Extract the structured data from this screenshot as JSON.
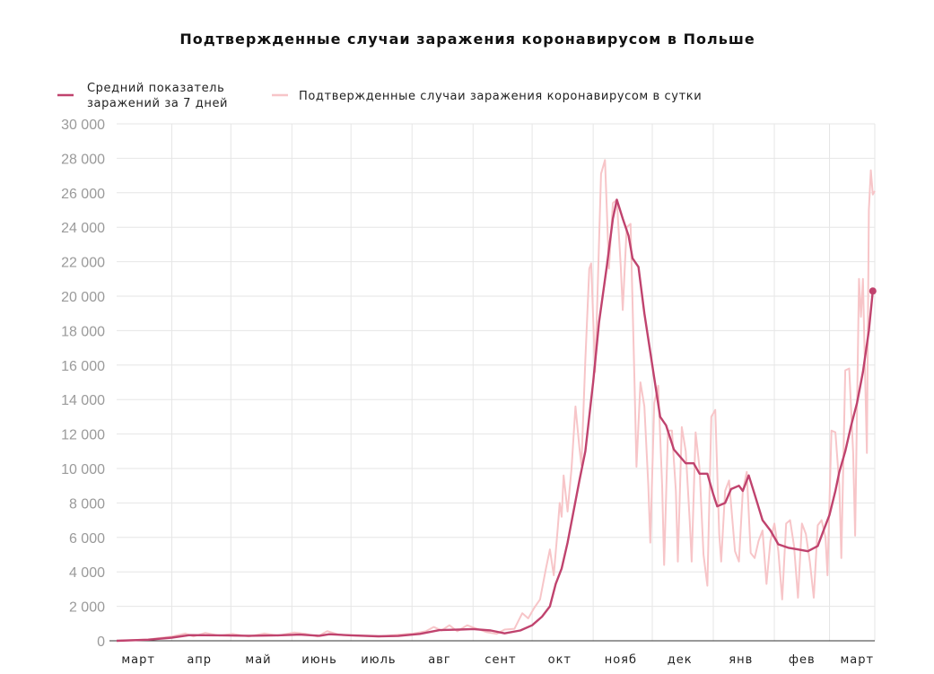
{
  "chart_data": {
    "type": "line",
    "title": "Подтвержденные случаи заражения коронавирусом в Польше",
    "xlabel": "",
    "ylabel": "",
    "ylim": [
      0,
      30000
    ],
    "yticks": [
      0,
      2000,
      4000,
      6000,
      8000,
      10000,
      12000,
      14000,
      16000,
      18000,
      20000,
      22000,
      24000,
      26000,
      28000,
      30000
    ],
    "ytick_labels": [
      "0",
      "2 000",
      "4 000",
      "6 000",
      "8 000",
      "10 000",
      "12 000",
      "14 000",
      "16 000",
      "18 000",
      "20 000",
      "22 000",
      "24 000",
      "26 000",
      "28 000",
      "30 000"
    ],
    "xlim": [
      "2020-03-04",
      "2021-03-24"
    ],
    "month_ticks": [
      {
        "date": "2020-03-15",
        "label": "март"
      },
      {
        "date": "2020-04-15",
        "label": "апр"
      },
      {
        "date": "2020-05-15",
        "label": "май"
      },
      {
        "date": "2020-06-15",
        "label": "июнь"
      },
      {
        "date": "2020-07-15",
        "label": "июль"
      },
      {
        "date": "2020-08-15",
        "label": "авг"
      },
      {
        "date": "2020-09-15",
        "label": "сент"
      },
      {
        "date": "2020-10-15",
        "label": "окт"
      },
      {
        "date": "2020-11-15",
        "label": "нояб"
      },
      {
        "date": "2020-12-15",
        "label": "дек"
      },
      {
        "date": "2021-01-15",
        "label": "янв"
      },
      {
        "date": "2021-02-15",
        "label": "фев"
      },
      {
        "date": "2021-03-15",
        "label": "март"
      }
    ],
    "grid": true,
    "legend_position": "top-left",
    "colors": {
      "avg": "#c0436e",
      "daily": "#f7c5c8",
      "grid": "#e6e6e6"
    },
    "series": [
      {
        "name": "Средний показатель заражений за 7 дней",
        "key": "avg",
        "points": [
          [
            "2020-03-04",
            0
          ],
          [
            "2020-03-20",
            60
          ],
          [
            "2020-04-01",
            180
          ],
          [
            "2020-04-10",
            330
          ],
          [
            "2020-04-25",
            320
          ],
          [
            "2020-05-10",
            290
          ],
          [
            "2020-05-25",
            320
          ],
          [
            "2020-06-05",
            360
          ],
          [
            "2020-06-15",
            290
          ],
          [
            "2020-06-20",
            380
          ],
          [
            "2020-07-01",
            320
          ],
          [
            "2020-07-15",
            260
          ],
          [
            "2020-07-25",
            280
          ],
          [
            "2020-08-05",
            400
          ],
          [
            "2020-08-15",
            620
          ],
          [
            "2020-08-25",
            650
          ],
          [
            "2020-09-01",
            680
          ],
          [
            "2020-09-10",
            600
          ],
          [
            "2020-09-17",
            430
          ],
          [
            "2020-09-25",
            600
          ],
          [
            "2020-10-01",
            900
          ],
          [
            "2020-10-06",
            1400
          ],
          [
            "2020-10-10",
            2000
          ],
          [
            "2020-10-13",
            3300
          ],
          [
            "2020-10-16",
            4200
          ],
          [
            "2020-10-19",
            5700
          ],
          [
            "2020-10-22",
            7500
          ],
          [
            "2020-10-25",
            9300
          ],
          [
            "2020-10-28",
            11000
          ],
          [
            "2020-11-01",
            15000
          ],
          [
            "2020-11-04",
            18500
          ],
          [
            "2020-11-08",
            21800
          ],
          [
            "2020-11-11",
            24500
          ],
          [
            "2020-11-13",
            25600
          ],
          [
            "2020-11-16",
            24500
          ],
          [
            "2020-11-19",
            23500
          ],
          [
            "2020-11-21",
            22200
          ],
          [
            "2020-11-24",
            21700
          ],
          [
            "2020-11-27",
            19000
          ],
          [
            "2020-12-01",
            16000
          ],
          [
            "2020-12-05",
            13000
          ],
          [
            "2020-12-08",
            12500
          ],
          [
            "2020-12-12",
            11100
          ],
          [
            "2020-12-18",
            10300
          ],
          [
            "2020-12-22",
            10300
          ],
          [
            "2020-12-25",
            9700
          ],
          [
            "2020-12-29",
            9700
          ],
          [
            "2021-01-01",
            8500
          ],
          [
            "2021-01-03",
            7800
          ],
          [
            "2021-01-07",
            8000
          ],
          [
            "2021-01-10",
            8800
          ],
          [
            "2021-01-14",
            9000
          ],
          [
            "2021-01-16",
            8700
          ],
          [
            "2021-01-19",
            9600
          ],
          [
            "2021-01-22",
            8500
          ],
          [
            "2021-01-26",
            7000
          ],
          [
            "2021-01-30",
            6400
          ],
          [
            "2021-02-03",
            5600
          ],
          [
            "2021-02-08",
            5400
          ],
          [
            "2021-02-13",
            5300
          ],
          [
            "2021-02-18",
            5200
          ],
          [
            "2021-02-23",
            5500
          ],
          [
            "2021-02-26",
            6400
          ],
          [
            "2021-03-01",
            7300
          ],
          [
            "2021-03-04",
            8700
          ],
          [
            "2021-03-06",
            9800
          ],
          [
            "2021-03-09",
            11000
          ],
          [
            "2021-03-12",
            12500
          ],
          [
            "2021-03-15",
            13800
          ],
          [
            "2021-03-18",
            15600
          ],
          [
            "2021-03-21",
            18000
          ],
          [
            "2021-03-23",
            20300
          ]
        ]
      },
      {
        "name": "Подтвержденные случаи заражения коронавирусом в сутки",
        "key": "daily",
        "points": [
          [
            "2020-03-04",
            0
          ],
          [
            "2020-03-20",
            80
          ],
          [
            "2020-04-01",
            250
          ],
          [
            "2020-04-08",
            420
          ],
          [
            "2020-04-12",
            250
          ],
          [
            "2020-04-18",
            460
          ],
          [
            "2020-04-25",
            300
          ],
          [
            "2020-05-02",
            400
          ],
          [
            "2020-05-10",
            250
          ],
          [
            "2020-05-18",
            420
          ],
          [
            "2020-05-25",
            300
          ],
          [
            "2020-06-02",
            480
          ],
          [
            "2020-06-08",
            400
          ],
          [
            "2020-06-14",
            250
          ],
          [
            "2020-06-19",
            560
          ],
          [
            "2020-06-25",
            350
          ],
          [
            "2020-07-05",
            300
          ],
          [
            "2020-07-15",
            250
          ],
          [
            "2020-07-25",
            350
          ],
          [
            "2020-08-02",
            420
          ],
          [
            "2020-08-08",
            550
          ],
          [
            "2020-08-12",
            800
          ],
          [
            "2020-08-16",
            600
          ],
          [
            "2020-08-20",
            900
          ],
          [
            "2020-08-24",
            550
          ],
          [
            "2020-08-29",
            900
          ],
          [
            "2020-09-03",
            700
          ],
          [
            "2020-09-08",
            500
          ],
          [
            "2020-09-13",
            400
          ],
          [
            "2020-09-17",
            650
          ],
          [
            "2020-09-22",
            700
          ],
          [
            "2020-09-26",
            1600
          ],
          [
            "2020-09-29",
            1300
          ],
          [
            "2020-10-02",
            1900
          ],
          [
            "2020-10-05",
            2400
          ],
          [
            "2020-10-08",
            4200
          ],
          [
            "2020-10-10",
            5300
          ],
          [
            "2020-10-12",
            3800
          ],
          [
            "2020-10-14",
            6500
          ],
          [
            "2020-10-15",
            8000
          ],
          [
            "2020-10-16",
            7200
          ],
          [
            "2020-10-17",
            9600
          ],
          [
            "2020-10-19",
            7500
          ],
          [
            "2020-10-21",
            10000
          ],
          [
            "2020-10-23",
            13600
          ],
          [
            "2020-10-25",
            11200
          ],
          [
            "2020-10-26",
            10200
          ],
          [
            "2020-10-28",
            16300
          ],
          [
            "2020-10-30",
            21600
          ],
          [
            "2020-10-31",
            21900
          ],
          [
            "2020-11-02",
            15600
          ],
          [
            "2020-11-03",
            19300
          ],
          [
            "2020-11-05",
            27100
          ],
          [
            "2020-11-07",
            27900
          ],
          [
            "2020-11-08",
            24800
          ],
          [
            "2020-11-09",
            21600
          ],
          [
            "2020-11-11",
            25400
          ],
          [
            "2020-11-13",
            25600
          ],
          [
            "2020-11-15",
            21700
          ],
          [
            "2020-11-16",
            19200
          ],
          [
            "2020-11-18",
            24000
          ],
          [
            "2020-11-20",
            24200
          ],
          [
            "2020-11-22",
            15000
          ],
          [
            "2020-11-23",
            10100
          ],
          [
            "2020-11-25",
            15000
          ],
          [
            "2020-11-27",
            13600
          ],
          [
            "2020-11-29",
            9000
          ],
          [
            "2020-11-30",
            5700
          ],
          [
            "2020-12-02",
            13800
          ],
          [
            "2020-12-04",
            14800
          ],
          [
            "2020-12-06",
            9000
          ],
          [
            "2020-12-07",
            4400
          ],
          [
            "2020-12-09",
            12200
          ],
          [
            "2020-12-11",
            12200
          ],
          [
            "2020-12-13",
            8700
          ],
          [
            "2020-12-14",
            4600
          ],
          [
            "2020-12-16",
            12400
          ],
          [
            "2020-12-18",
            11000
          ],
          [
            "2020-12-20",
            7000
          ],
          [
            "2020-12-21",
            4600
          ],
          [
            "2020-12-23",
            12100
          ],
          [
            "2020-12-25",
            10000
          ],
          [
            "2020-12-27",
            5000
          ],
          [
            "2020-12-29",
            3200
          ],
          [
            "2020-12-31",
            13000
          ],
          [
            "2021-01-02",
            13400
          ],
          [
            "2021-01-04",
            6200
          ],
          [
            "2021-01-05",
            4600
          ],
          [
            "2021-01-07",
            8700
          ],
          [
            "2021-01-09",
            9300
          ],
          [
            "2021-01-12",
            5200
          ],
          [
            "2021-01-14",
            4600
          ],
          [
            "2021-01-16",
            8700
          ],
          [
            "2021-01-18",
            9800
          ],
          [
            "2021-01-20",
            5100
          ],
          [
            "2021-01-22",
            4800
          ],
          [
            "2021-01-24",
            5800
          ],
          [
            "2021-01-26",
            6400
          ],
          [
            "2021-01-28",
            3300
          ],
          [
            "2021-01-30",
            5800
          ],
          [
            "2021-02-01",
            6800
          ],
          [
            "2021-02-03",
            5200
          ],
          [
            "2021-02-05",
            2400
          ],
          [
            "2021-02-07",
            6800
          ],
          [
            "2021-02-09",
            7000
          ],
          [
            "2021-02-11",
            5500
          ],
          [
            "2021-02-13",
            2500
          ],
          [
            "2021-02-15",
            6800
          ],
          [
            "2021-02-17",
            6200
          ],
          [
            "2021-02-19",
            4600
          ],
          [
            "2021-02-21",
            2500
          ],
          [
            "2021-02-23",
            6700
          ],
          [
            "2021-02-25",
            7000
          ],
          [
            "2021-02-27",
            6000
          ],
          [
            "2021-02-28",
            3800
          ],
          [
            "2021-03-02",
            12200
          ],
          [
            "2021-03-04",
            12100
          ],
          [
            "2021-03-06",
            9000
          ],
          [
            "2021-03-07",
            4800
          ],
          [
            "2021-03-09",
            15700
          ],
          [
            "2021-03-11",
            15800
          ],
          [
            "2021-03-13",
            10900
          ],
          [
            "2021-03-14",
            6100
          ],
          [
            "2021-03-16",
            21000
          ],
          [
            "2021-03-17",
            18800
          ],
          [
            "2021-03-18",
            21000
          ],
          [
            "2021-03-20",
            10900
          ],
          [
            "2021-03-21",
            25000
          ],
          [
            "2021-03-22",
            27300
          ],
          [
            "2021-03-23",
            25900
          ],
          [
            "2021-03-24",
            26100
          ]
        ]
      }
    ],
    "last_point": {
      "date": "2021-03-23",
      "value": 20300
    }
  },
  "legend": {
    "avg_label_line1": "Средний показатель",
    "avg_label_line2": "заражений за 7 дней",
    "daily_label": "Подтвержденные случаи заражения коронавирусом в сутки"
  }
}
